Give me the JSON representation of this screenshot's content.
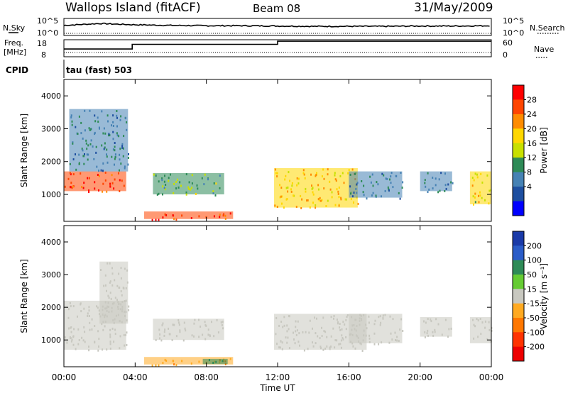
{
  "header": {
    "title": "Wallops Island (fitACF)",
    "beam": "Beam 08",
    "date": "31/May/2009"
  },
  "top_panels": {
    "nsky_label": "N.Sky",
    "nsky_tick_top": "10^5",
    "nsky_tick_bottom": "10^0",
    "nsearch_label": "N.Search",
    "nsearch_tick_top": "10^5",
    "nsearch_tick_bottom": "10^0",
    "freq_label": "Freq.",
    "freq_unit": "[MHz]",
    "freq_tick_top": "18",
    "freq_tick_bottom": "8",
    "nave_label": "Nave",
    "nave_tick_top": "60",
    "nave_tick_bottom": "0",
    "cpid_label": "CPID",
    "cpid_value": "tau (fast) 503"
  },
  "chart_data": [
    {
      "type": "line",
      "name": "nsky",
      "x": [
        "00:00",
        "02:00",
        "04:00",
        "06:00",
        "08:00",
        "10:00",
        "12:00",
        "14:00",
        "16:00",
        "18:00",
        "20:00",
        "22:00",
        "24:00"
      ],
      "y_log": [
        3.0,
        3.6,
        3.2,
        3.0,
        2.9,
        2.9,
        2.8,
        2.7,
        2.7,
        2.7,
        2.8,
        2.8,
        2.9
      ],
      "ylim": [
        0,
        5
      ]
    },
    {
      "type": "line",
      "name": "freq_mhz",
      "x": [
        "00:00",
        "03:50",
        "03:50",
        "12:00",
        "12:00",
        "24:00"
      ],
      "y": [
        12.5,
        12.5,
        15.5,
        15.5,
        17.5,
        17.5
      ],
      "ylim": [
        8,
        18
      ]
    },
    {
      "type": "heatmap",
      "name": "power",
      "xlabel": "Time UT",
      "ylabel": "Slant Range [km]",
      "x_ticks": [
        "00:00",
        "04:00",
        "08:00",
        "12:00",
        "16:00",
        "20:00",
        "00:00"
      ],
      "y_ticks": [
        "1000",
        "2000",
        "3000",
        "4000"
      ],
      "ylim": [
        180,
        4500
      ],
      "colorbar_label": "Power [dB]",
      "colorbar_ticks": [
        "28",
        "24",
        "20",
        "16",
        "12",
        "8",
        "4"
      ],
      "colorbar_colors": [
        "#ff0000",
        "#ff4500",
        "#ff8c00",
        "#ffd700",
        "#c8e000",
        "#2e8b57",
        "#4682b4",
        "#1e4fa0",
        "#0000ff"
      ],
      "features": [
        {
          "t0": 0.0,
          "t1": 3.5,
          "r0": 1100,
          "r1": 1700,
          "level": 26
        },
        {
          "t0": 0.3,
          "t1": 3.6,
          "r0": 1700,
          "r1": 3600,
          "level": 8
        },
        {
          "t0": 4.5,
          "t1": 9.5,
          "r0": 250,
          "r1": 480,
          "level": 26
        },
        {
          "t0": 5.0,
          "t1": 9.0,
          "r0": 1000,
          "r1": 1650,
          "level": 12
        },
        {
          "t0": 11.8,
          "t1": 16.5,
          "r0": 600,
          "r1": 1800,
          "level": 18
        },
        {
          "t0": 16.0,
          "t1": 19.0,
          "r0": 900,
          "r1": 1700,
          "level": 8
        },
        {
          "t0": 20.0,
          "t1": 21.8,
          "r0": 1100,
          "r1": 1700,
          "level": 8
        },
        {
          "t0": 22.8,
          "t1": 24.0,
          "r0": 700,
          "r1": 1700,
          "level": 16
        }
      ]
    },
    {
      "type": "heatmap",
      "name": "velocity",
      "xlabel": "Time UT",
      "ylabel": "Slant Range [km]",
      "x_ticks": [
        "00:00",
        "04:00",
        "08:00",
        "12:00",
        "16:00",
        "20:00",
        "00:00"
      ],
      "y_ticks": [
        "1000",
        "2000",
        "3000",
        "4000"
      ],
      "ylim": [
        180,
        4500
      ],
      "colorbar_label": "Velocity [m s⁻¹]",
      "colorbar_ticks": [
        "200",
        "100",
        "50",
        "15",
        "-15",
        "-50",
        "-100",
        "-200"
      ],
      "colorbar_colors": [
        "#1a3aa8",
        "#2a5cc8",
        "#2e8b57",
        "#66cc33",
        "#c8c8c0",
        "#ffaa22",
        "#ff7700",
        "#ff3300",
        "#ee0000"
      ],
      "features": [
        {
          "t0": 0.0,
          "t1": 3.5,
          "r0": 700,
          "r1": 2200,
          "level": 0
        },
        {
          "t0": 2.0,
          "t1": 3.6,
          "r0": 1500,
          "r1": 3400,
          "level": 0
        },
        {
          "t0": 4.5,
          "t1": 9.5,
          "r0": 250,
          "r1": 480,
          "level": -40
        },
        {
          "t0": 7.8,
          "t1": 9.2,
          "r0": 260,
          "r1": 420,
          "level": 60
        },
        {
          "t0": 5.0,
          "t1": 9.0,
          "r0": 1000,
          "r1": 1650,
          "level": 0
        },
        {
          "t0": 11.8,
          "t1": 17.0,
          "r0": 700,
          "r1": 1800,
          "level": 0
        },
        {
          "t0": 16.0,
          "t1": 19.0,
          "r0": 900,
          "r1": 1800,
          "level": 0
        },
        {
          "t0": 20.0,
          "t1": 21.8,
          "r0": 1100,
          "r1": 1700,
          "level": 0
        },
        {
          "t0": 22.8,
          "t1": 24.0,
          "r0": 900,
          "r1": 1700,
          "level": 0
        }
      ]
    }
  ]
}
